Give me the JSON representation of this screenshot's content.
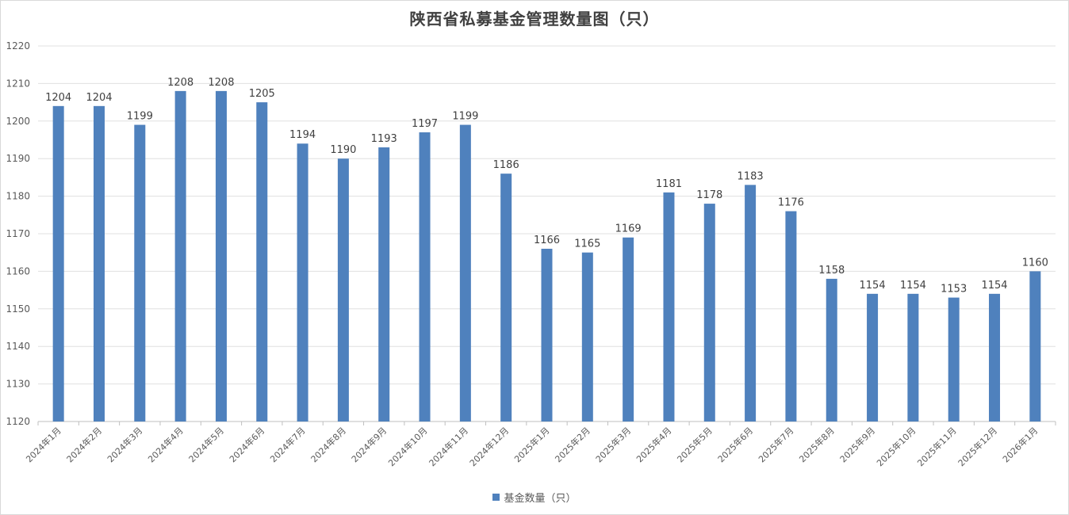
{
  "chart_data": {
    "type": "bar",
    "title": "陕西省私募基金管理数量图（只）",
    "xlabel": "",
    "ylabel": "",
    "ylim": [
      1120,
      1220
    ],
    "yticks": [
      1120,
      1130,
      1140,
      1150,
      1160,
      1170,
      1180,
      1190,
      1200,
      1210,
      1220
    ],
    "grid": true,
    "legend_position": "bottom",
    "categories": [
      "2024年1月",
      "2024年2月",
      "2024年3月",
      "2024年4月",
      "2024年5月",
      "2024年6月",
      "2024年7月",
      "2024年8月",
      "2024年9月",
      "2024年10月",
      "2024年11月",
      "2024年12月",
      "2025年1月",
      "2025年2月",
      "2025年3月",
      "2025年4月",
      "2025年5月",
      "2025年6月",
      "2025年7月",
      "2025年8月",
      "2025年9月",
      "2025年10月",
      "2025年11月",
      "2025年12月",
      "2026年1月"
    ],
    "series": [
      {
        "name": "基金数量（只）",
        "color": "#4f81bd",
        "values": [
          1204,
          1204,
          1199,
          1208,
          1208,
          1205,
          1194,
          1190,
          1193,
          1197,
          1199,
          1186,
          1166,
          1165,
          1169,
          1181,
          1178,
          1183,
          1176,
          1158,
          1154,
          1154,
          1153,
          1154,
          1160
        ]
      }
    ]
  }
}
